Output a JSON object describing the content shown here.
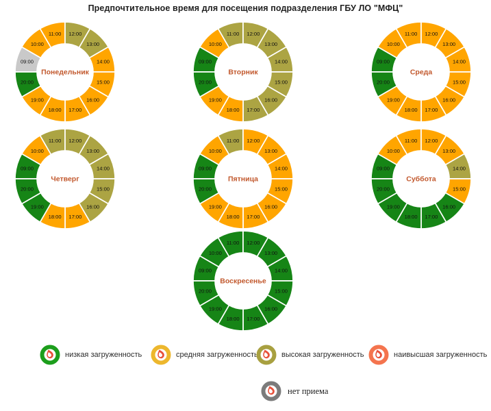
{
  "title": "Предпочтительное время для посещения подразделения ГБУ ЛО \"МФЦ\"",
  "colors": {
    "low": "#168516",
    "medium": "#FFA500",
    "high": "#ACA443",
    "highest": "#F4744E",
    "none": "#C9C9C9",
    "segment_divider": "#FFFFFF",
    "day_label": "#C2592E",
    "hour_label": "#111111",
    "logo_drop": "#E8513B"
  },
  "chart_data": {
    "type": "pie",
    "subtype": "donut-clock",
    "title": "Предпочтительное время для посещения подразделения ГБУ ЛО \"МФЦ\"",
    "hours": [
      "09:00",
      "10:00",
      "11:00",
      "12:00",
      "13:00",
      "14:00",
      "15:00",
      "16:00",
      "17:00",
      "18:00",
      "19:00",
      "20:00"
    ],
    "level_names": {
      "low": "низкая загруженность",
      "medium": "средняя загруженность",
      "high": "высокая загруженность",
      "highest": "наивысшая загруженность",
      "none": "нет приема"
    },
    "days": [
      {
        "id": "monday",
        "name": "Понедельник",
        "levels": [
          "none",
          "medium",
          "medium",
          "high",
          "high",
          "medium",
          "medium",
          "medium",
          "medium",
          "medium",
          "medium",
          "low"
        ]
      },
      {
        "id": "tuesday",
        "name": "Вторник",
        "levels": [
          "low",
          "medium",
          "high",
          "high",
          "high",
          "high",
          "high",
          "high",
          "high",
          "medium",
          "medium",
          "low"
        ]
      },
      {
        "id": "wednesday",
        "name": "Среда",
        "levels": [
          "low",
          "medium",
          "medium",
          "medium",
          "medium",
          "medium",
          "medium",
          "medium",
          "medium",
          "medium",
          "medium",
          "low"
        ]
      },
      {
        "id": "thursday",
        "name": "Четверг",
        "levels": [
          "low",
          "medium",
          "high",
          "high",
          "high",
          "high",
          "high",
          "high",
          "medium",
          "medium",
          "low",
          "low"
        ]
      },
      {
        "id": "friday",
        "name": "Пятница",
        "levels": [
          "low",
          "medium",
          "high",
          "medium",
          "medium",
          "medium",
          "medium",
          "medium",
          "medium",
          "medium",
          "medium",
          "low"
        ]
      },
      {
        "id": "saturday",
        "name": "Суббота",
        "levels": [
          "low",
          "medium",
          "medium",
          "medium",
          "medium",
          "high",
          "medium",
          "low",
          "low",
          "low",
          "low",
          "low"
        ]
      },
      {
        "id": "sunday",
        "name": "Воскресенье",
        "levels": [
          "low",
          "low",
          "low",
          "low",
          "low",
          "low",
          "low",
          "low",
          "low",
          "low",
          "low",
          "low"
        ]
      }
    ]
  },
  "legend": {
    "row1": [
      {
        "id": "low",
        "label": "низкая загруженность",
        "ring_color": "#1C9E1C"
      },
      {
        "id": "medium",
        "label": "средняя загруженность",
        "ring_color": "#EDB72D"
      },
      {
        "id": "high",
        "label": "высокая загруженность",
        "ring_color": "#A8A040"
      },
      {
        "id": "highest",
        "label": "наивысшая загруженность",
        "ring_color": "#F4744E"
      }
    ],
    "row2": {
      "id": "none",
      "label": "нет приема",
      "ring_color": "#7B7B7B"
    }
  }
}
